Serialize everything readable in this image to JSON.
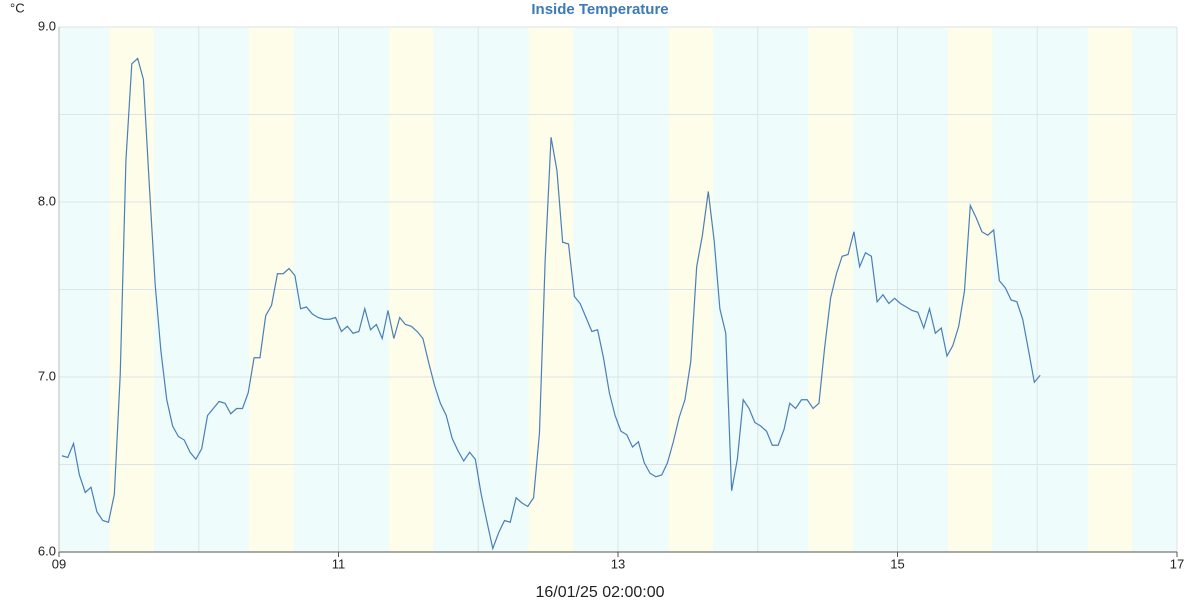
{
  "chart_data": {
    "type": "line",
    "title": "Inside Temperature",
    "y_unit": "°C",
    "x_label": "16/01/25 02:00:00",
    "xlim": [
      9,
      17
    ],
    "ylim": [
      6,
      9
    ],
    "xticks": [
      {
        "value": 9,
        "label": "09"
      },
      11,
      13,
      15,
      17
    ],
    "xminor_grid": [
      10,
      12,
      14,
      16
    ],
    "yticks": [
      {
        "value": 6,
        "label": "6.0"
      },
      {
        "value": 7,
        "label": "7.0"
      },
      {
        "value": 8,
        "label": "8.0"
      },
      {
        "value": 9,
        "label": "9.0"
      }
    ],
    "yminor_grid": [
      6.5,
      7.5,
      8.5
    ],
    "grid": true,
    "background_color": "#eefcfc",
    "band_color": "#fdfde9",
    "bands": [
      [
        9.36,
        9.68
      ],
      [
        10.36,
        10.68
      ],
      [
        11.36,
        11.68
      ],
      [
        12.36,
        12.68
      ],
      [
        13.36,
        13.68
      ],
      [
        14.36,
        14.68
      ],
      [
        15.36,
        15.68
      ],
      [
        16.36,
        16.68
      ]
    ],
    "series": [
      {
        "name": "Inside Temperature",
        "color": "#4a7fb8",
        "x": [
          9.021,
          9.063,
          9.104,
          9.146,
          9.188,
          9.229,
          9.271,
          9.313,
          9.354,
          9.396,
          9.438,
          9.479,
          9.521,
          9.563,
          9.604,
          9.646,
          9.688,
          9.729,
          9.771,
          9.813,
          9.854,
          9.896,
          9.938,
          9.979,
          10.021,
          10.063,
          10.104,
          10.146,
          10.188,
          10.229,
          10.271,
          10.313,
          10.354,
          10.396,
          10.438,
          10.479,
          10.521,
          10.563,
          10.604,
          10.646,
          10.688,
          10.729,
          10.771,
          10.813,
          10.854,
          10.896,
          10.938,
          10.979,
          11.021,
          11.063,
          11.104,
          11.146,
          11.188,
          11.229,
          11.271,
          11.313,
          11.354,
          11.396,
          11.438,
          11.479,
          11.521,
          11.563,
          11.604,
          11.646,
          11.688,
          11.729,
          11.771,
          11.813,
          11.854,
          11.896,
          11.938,
          11.979,
          12.021,
          12.063,
          12.104,
          12.146,
          12.188,
          12.229,
          12.271,
          12.313,
          12.354,
          12.396,
          12.438,
          12.479,
          12.521,
          12.563,
          12.604,
          12.646,
          12.688,
          12.729,
          12.771,
          12.813,
          12.854,
          12.896,
          12.938,
          12.979,
          13.021,
          13.063,
          13.104,
          13.146,
          13.188,
          13.229,
          13.271,
          13.313,
          13.354,
          13.396,
          13.438,
          13.479,
          13.521,
          13.563,
          13.604,
          13.646,
          13.688,
          13.729,
          13.771,
          13.813,
          13.854,
          13.896,
          13.938,
          13.979,
          14.021,
          14.063,
          14.104,
          14.146,
          14.188,
          14.229,
          14.271,
          14.313,
          14.354,
          14.396,
          14.438,
          14.479,
          14.521,
          14.563,
          14.604,
          14.646,
          14.688,
          14.729,
          14.771,
          14.813,
          14.854,
          14.896,
          14.938,
          14.979,
          15.021,
          15.063,
          15.104,
          15.146,
          15.188,
          15.229,
          15.271,
          15.313,
          15.354,
          15.396,
          15.438,
          15.479,
          15.521,
          15.563,
          15.604,
          15.646,
          15.688,
          15.729,
          15.771,
          15.813,
          15.854,
          15.896,
          15.938,
          15.979,
          16.021
        ],
        "values": [
          6.55,
          6.54,
          6.62,
          6.44,
          6.34,
          6.37,
          6.23,
          6.18,
          6.17,
          6.33,
          7.01,
          8.24,
          8.79,
          8.82,
          8.7,
          8.1,
          7.53,
          7.15,
          6.87,
          6.72,
          6.66,
          6.64,
          6.57,
          6.53,
          6.59,
          6.78,
          6.82,
          6.86,
          6.85,
          6.79,
          6.82,
          6.82,
          6.91,
          7.11,
          7.11,
          7.35,
          7.41,
          7.59,
          7.59,
          7.62,
          7.58,
          7.39,
          7.4,
          7.36,
          7.34,
          7.33,
          7.33,
          7.34,
          7.26,
          7.29,
          7.25,
          7.26,
          7.39,
          7.27,
          7.3,
          7.22,
          7.38,
          7.22,
          7.34,
          7.3,
          7.29,
          7.26,
          7.22,
          7.08,
          6.95,
          6.85,
          6.78,
          6.65,
          6.58,
          6.52,
          6.57,
          6.53,
          6.33,
          6.17,
          6.02,
          6.11,
          6.18,
          6.17,
          6.31,
          6.28,
          6.26,
          6.31,
          6.68,
          7.67,
          8.37,
          8.18,
          7.77,
          7.76,
          7.46,
          7.42,
          7.34,
          7.26,
          7.27,
          7.11,
          6.91,
          6.78,
          6.69,
          6.67,
          6.6,
          6.63,
          6.51,
          6.45,
          6.43,
          6.44,
          6.51,
          6.63,
          6.77,
          6.87,
          7.09,
          7.63,
          7.81,
          8.06,
          7.78,
          7.39,
          7.25,
          6.35,
          6.53,
          6.87,
          6.82,
          6.74,
          6.72,
          6.69,
          6.61,
          6.61,
          6.7,
          6.85,
          6.82,
          6.87,
          6.87,
          6.82,
          6.85,
          7.17,
          7.45,
          7.59,
          7.69,
          7.7,
          7.83,
          7.63,
          7.71,
          7.69,
          7.43,
          7.47,
          7.42,
          7.45,
          7.42,
          7.4,
          7.38,
          7.37,
          7.28,
          7.39,
          7.25,
          7.28,
          7.12,
          7.18,
          7.29,
          7.49,
          7.98,
          7.91,
          7.83,
          7.81,
          7.84,
          7.55,
          7.51,
          7.44,
          7.43,
          7.33,
          7.15,
          6.97,
          7.01
        ]
      }
    ]
  }
}
